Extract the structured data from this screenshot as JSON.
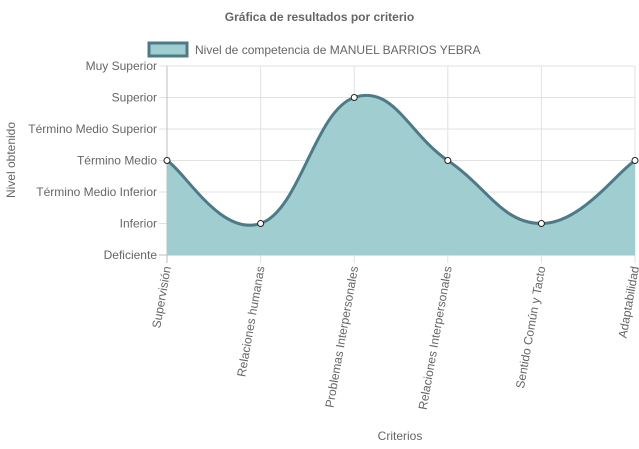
{
  "chart_data": {
    "type": "area",
    "title": "Gráfica de resultados por criterio",
    "xlabel": "Criterios",
    "ylabel": "Nivel obtenido",
    "categories": [
      "Supervisión",
      "Relaciones humanas",
      "Problemas Interpersonales",
      "Relaciones Interpersonales",
      "Sentido Común y Tacto",
      "Adaptabilidad"
    ],
    "y_levels": [
      "Deficiente",
      "Inferior",
      "Término Medio Inferior",
      "Término Medio",
      "Término Medio Superior",
      "Superior",
      "Muy Superior"
    ],
    "ylim": [
      0,
      6
    ],
    "series": [
      {
        "name": "Nivel de competencia de MANUEL BARRIOS YEBRA",
        "values": [
          3,
          1,
          5,
          3,
          1,
          3
        ],
        "fill_color": "#9fcdd0",
        "line_color": "#4e7a86"
      }
    ],
    "legend_position": "top",
    "grid": true
  }
}
